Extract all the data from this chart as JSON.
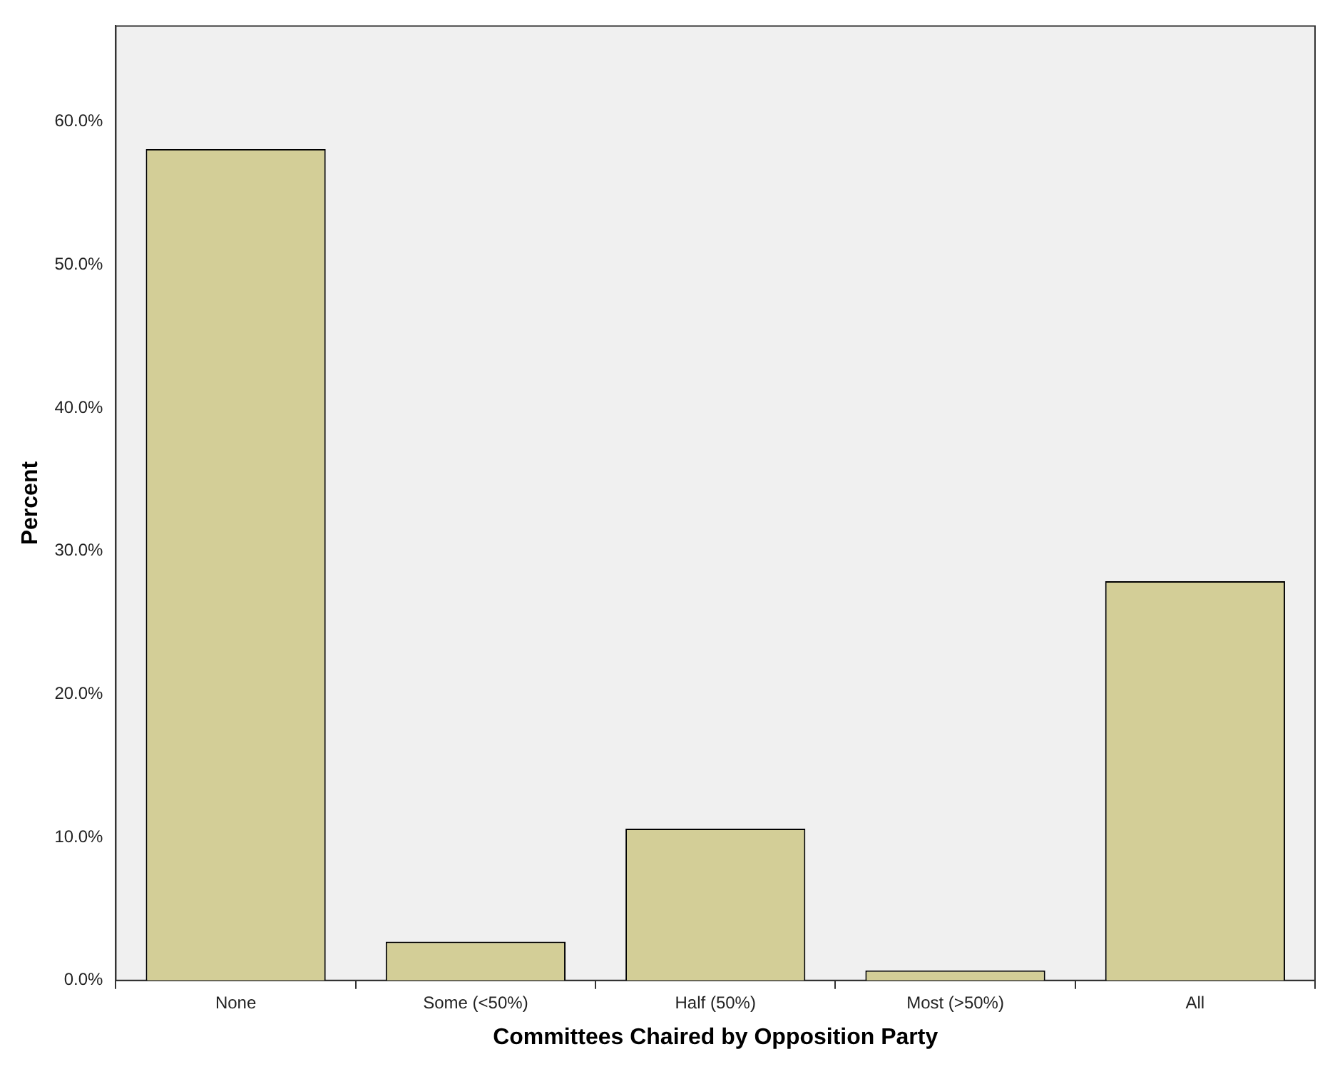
{
  "chart_data": {
    "type": "bar",
    "xlabel": "Committees Chaired by Opposition Party",
    "ylabel": "Percent",
    "categories": [
      "None",
      "Some (<50%)",
      "Half (50%)",
      "Most (>50%)",
      "All"
    ],
    "values": [
      58.1,
      2.7,
      10.6,
      0.7,
      27.9
    ],
    "color": "#d3ce97",
    "ylim": [
      0,
      66.7
    ],
    "yticks": [
      {
        "value": 0,
        "label": "0.0%"
      },
      {
        "value": 10,
        "label": "10.0%"
      },
      {
        "value": 20,
        "label": "20.0%"
      },
      {
        "value": 30,
        "label": "30.0%"
      },
      {
        "value": 40,
        "label": "40.0%"
      },
      {
        "value": 50,
        "label": "50.0%"
      },
      {
        "value": 60,
        "label": "60.0%"
      }
    ],
    "grid": false,
    "legend": false
  }
}
